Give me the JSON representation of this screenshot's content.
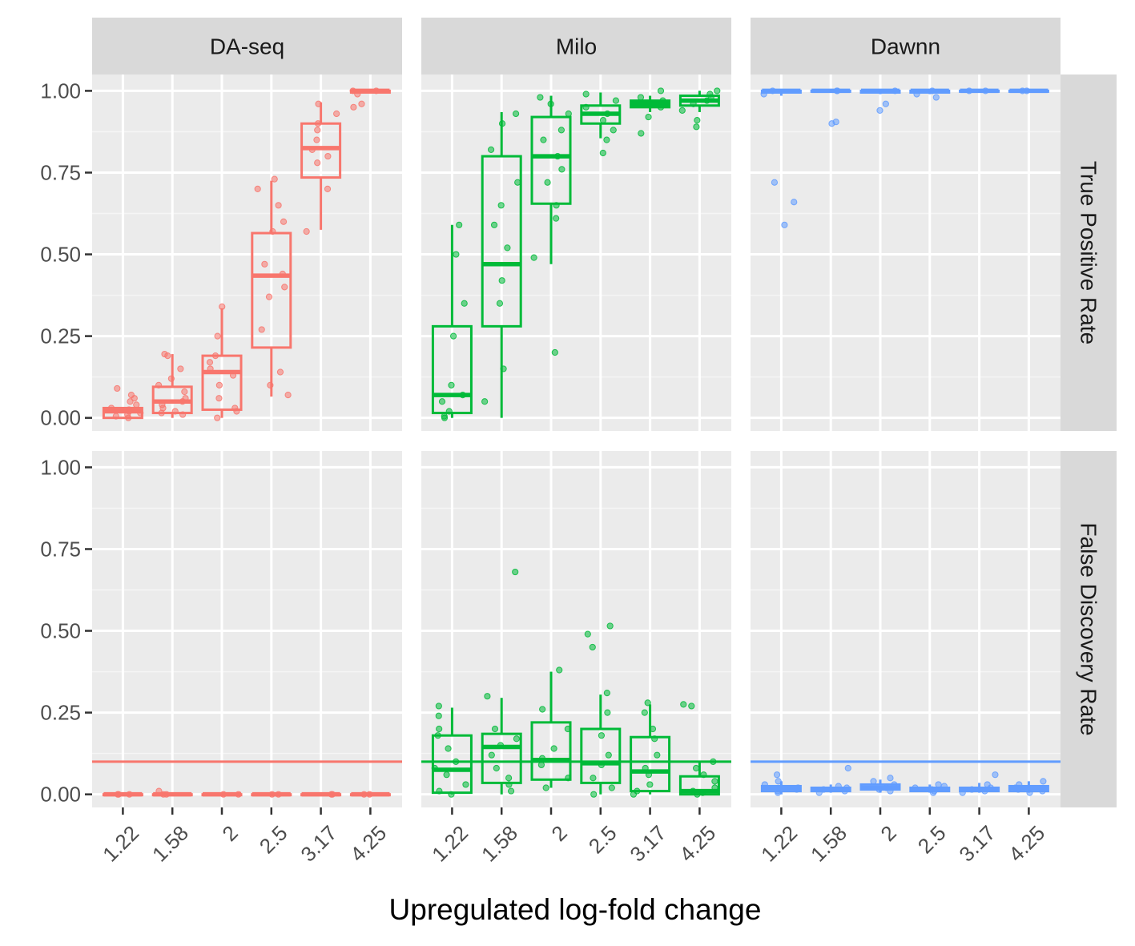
{
  "chart_data": {
    "type": "boxplot",
    "xlabel": "Upregulated log-fold change",
    "methods": [
      "DA-seq",
      "Milo",
      "Dawnn"
    ],
    "metrics": [
      "True Positive Rate",
      "False Discovery Rate"
    ],
    "categories": [
      "1.22",
      "1.58",
      "2",
      "2.5",
      "3.17",
      "4.25"
    ],
    "yticks": [
      "0.00",
      "0.25",
      "0.50",
      "0.75",
      "1.00"
    ],
    "ylim": [
      -0.04,
      1.05
    ],
    "fdr_reference_line": 0.1,
    "colors": {
      "DA-seq": "#F8766D",
      "Milo": "#00BA38",
      "Dawnn": "#619CFF"
    },
    "panels": [
      {
        "method": "DA-seq",
        "metric": "True Positive Rate",
        "boxes": [
          {
            "cat": "1.22",
            "q1": 0.0,
            "median": 0.02,
            "q3": 0.03,
            "whislo": 0.0,
            "whishi": 0.03,
            "points": [
              0.0,
              0.005,
              0.01,
              0.015,
              0.02,
              0.025,
              0.03,
              0.04,
              0.05,
              0.06,
              0.07,
              0.09
            ]
          },
          {
            "cat": "1.58",
            "q1": 0.015,
            "median": 0.05,
            "q3": 0.095,
            "whislo": 0.0,
            "whishi": 0.195,
            "points": [
              0.01,
              0.015,
              0.02,
              0.03,
              0.04,
              0.05,
              0.06,
              0.08,
              0.1,
              0.12,
              0.15,
              0.19,
              0.195
            ]
          },
          {
            "cat": "2",
            "q1": 0.025,
            "median": 0.14,
            "q3": 0.19,
            "whislo": 0.0,
            "whishi": 0.335,
            "points": [
              0.0,
              0.02,
              0.03,
              0.06,
              0.1,
              0.13,
              0.15,
              0.17,
              0.19,
              0.25,
              0.34
            ]
          },
          {
            "cat": "2.5",
            "q1": 0.215,
            "median": 0.435,
            "q3": 0.565,
            "whislo": 0.065,
            "whishi": 0.725,
            "points": [
              0.07,
              0.1,
              0.14,
              0.27,
              0.37,
              0.4,
              0.44,
              0.47,
              0.57,
              0.6,
              0.65,
              0.7,
              0.73
            ]
          },
          {
            "cat": "3.17",
            "q1": 0.735,
            "median": 0.825,
            "q3": 0.9,
            "whislo": 0.575,
            "whishi": 0.965,
            "points": [
              0.57,
              0.7,
              0.78,
              0.8,
              0.82,
              0.85,
              0.88,
              0.9,
              0.93,
              0.96
            ]
          },
          {
            "cat": "4.25",
            "q1": 0.995,
            "median": 1.0,
            "q3": 1.0,
            "whislo": 0.995,
            "whishi": 1.0,
            "points": [
              0.95,
              0.96,
              0.99,
              1.0,
              1.0
            ]
          }
        ]
      },
      {
        "method": "Milo",
        "metric": "True Positive Rate",
        "boxes": [
          {
            "cat": "1.22",
            "q1": 0.015,
            "median": 0.07,
            "q3": 0.28,
            "whislo": 0.0,
            "whishi": 0.59,
            "points": [
              0.0,
              0.005,
              0.02,
              0.05,
              0.07,
              0.1,
              0.25,
              0.35,
              0.5,
              0.59
            ]
          },
          {
            "cat": "1.58",
            "q1": 0.28,
            "median": 0.47,
            "q3": 0.8,
            "whislo": 0.0,
            "whishi": 0.935,
            "points": [
              0.05,
              0.15,
              0.35,
              0.42,
              0.52,
              0.59,
              0.65,
              0.72,
              0.82,
              0.9,
              0.93
            ]
          },
          {
            "cat": "2",
            "q1": 0.655,
            "median": 0.8,
            "q3": 0.92,
            "whislo": 0.47,
            "whishi": 0.985,
            "points": [
              0.2,
              0.49,
              0.61,
              0.65,
              0.72,
              0.76,
              0.8,
              0.85,
              0.88,
              0.93,
              0.96,
              0.98
            ]
          },
          {
            "cat": "2.5",
            "q1": 0.9,
            "median": 0.93,
            "q3": 0.955,
            "whislo": 0.855,
            "whishi": 0.995,
            "points": [
              0.81,
              0.85,
              0.88,
              0.91,
              0.93,
              0.95,
              0.97,
              0.99
            ]
          },
          {
            "cat": "3.17",
            "q1": 0.95,
            "median": 0.96,
            "q3": 0.97,
            "whislo": 0.935,
            "whishi": 0.985,
            "points": [
              0.87,
              0.92,
              0.95,
              0.96,
              0.97,
              0.98,
              1.0
            ]
          },
          {
            "cat": "4.25",
            "q1": 0.955,
            "median": 0.97,
            "q3": 0.985,
            "whislo": 0.935,
            "whishi": 1.0,
            "points": [
              0.89,
              0.91,
              0.94,
              0.96,
              0.97,
              0.98,
              0.99,
              1.0
            ]
          }
        ]
      },
      {
        "method": "Dawnn",
        "metric": "True Positive Rate",
        "boxes": [
          {
            "cat": "1.22",
            "q1": 0.995,
            "median": 1.0,
            "q3": 1.0,
            "whislo": 0.985,
            "whishi": 1.0,
            "points": [
              0.59,
              0.66,
              0.72,
              0.99,
              1.0
            ]
          },
          {
            "cat": "1.58",
            "q1": 1.0,
            "median": 1.0,
            "q3": 1.0,
            "whislo": 1.0,
            "whishi": 1.0,
            "points": [
              0.9,
              0.905,
              1.0,
              1.0
            ]
          },
          {
            "cat": "2",
            "q1": 0.995,
            "median": 1.0,
            "q3": 1.0,
            "whislo": 0.99,
            "whishi": 1.0,
            "points": [
              0.94,
              0.96,
              1.0
            ]
          },
          {
            "cat": "2.5",
            "q1": 0.995,
            "median": 1.0,
            "q3": 1.0,
            "whislo": 0.99,
            "whishi": 1.0,
            "points": [
              0.98,
              0.99,
              1.0
            ]
          },
          {
            "cat": "3.17",
            "q1": 1.0,
            "median": 1.0,
            "q3": 1.0,
            "whislo": 1.0,
            "whishi": 1.0,
            "points": [
              1.0,
              1.0
            ]
          },
          {
            "cat": "4.25",
            "q1": 1.0,
            "median": 1.0,
            "q3": 1.0,
            "whislo": 1.0,
            "whishi": 1.0,
            "points": [
              1.0,
              1.0
            ]
          }
        ]
      },
      {
        "method": "DA-seq",
        "metric": "False Discovery Rate",
        "boxes": [
          {
            "cat": "1.22",
            "q1": 0.0,
            "median": 0.0,
            "q3": 0.0,
            "whislo": 0.0,
            "whishi": 0.0,
            "points": [
              0.0,
              0.0,
              0.0
            ]
          },
          {
            "cat": "1.58",
            "q1": 0.0,
            "median": 0.0,
            "q3": 0.0,
            "whislo": 0.0,
            "whishi": 0.0,
            "points": [
              0.0,
              0.0,
              0.01
            ]
          },
          {
            "cat": "2",
            "q1": 0.0,
            "median": 0.0,
            "q3": 0.0,
            "whislo": 0.0,
            "whishi": 0.0,
            "points": [
              0.0,
              0.0
            ]
          },
          {
            "cat": "2.5",
            "q1": 0.0,
            "median": 0.0,
            "q3": 0.0,
            "whislo": 0.0,
            "whishi": 0.0,
            "points": [
              0.0,
              0.0
            ]
          },
          {
            "cat": "3.17",
            "q1": 0.0,
            "median": 0.0,
            "q3": 0.0,
            "whislo": 0.0,
            "whishi": 0.0,
            "points": [
              0.0,
              0.0
            ]
          },
          {
            "cat": "4.25",
            "q1": 0.0,
            "median": 0.0,
            "q3": 0.0,
            "whislo": 0.0,
            "whishi": 0.0,
            "points": [
              0.0,
              0.0
            ]
          }
        ]
      },
      {
        "method": "Milo",
        "metric": "False Discovery Rate",
        "boxes": [
          {
            "cat": "1.22",
            "q1": 0.005,
            "median": 0.075,
            "q3": 0.18,
            "whislo": 0.0,
            "whishi": 0.265,
            "points": [
              0.0,
              0.01,
              0.03,
              0.06,
              0.08,
              0.1,
              0.14,
              0.18,
              0.2,
              0.24,
              0.27
            ]
          },
          {
            "cat": "1.58",
            "q1": 0.035,
            "median": 0.145,
            "q3": 0.185,
            "whislo": 0.0,
            "whishi": 0.295,
            "points": [
              0.01,
              0.03,
              0.05,
              0.08,
              0.12,
              0.15,
              0.17,
              0.2,
              0.3,
              0.68
            ]
          },
          {
            "cat": "2",
            "q1": 0.045,
            "median": 0.105,
            "q3": 0.22,
            "whislo": 0.02,
            "whishi": 0.375,
            "points": [
              0.02,
              0.05,
              0.09,
              0.11,
              0.14,
              0.2,
              0.26,
              0.38
            ]
          },
          {
            "cat": "2.5",
            "q1": 0.035,
            "median": 0.095,
            "q3": 0.2,
            "whislo": 0.0,
            "whishi": 0.305,
            "points": [
              0.0,
              0.02,
              0.05,
              0.09,
              0.12,
              0.18,
              0.25,
              0.31,
              0.45,
              0.49,
              0.515
            ]
          },
          {
            "cat": "3.17",
            "q1": 0.01,
            "median": 0.07,
            "q3": 0.175,
            "whislo": 0.0,
            "whishi": 0.275,
            "points": [
              0.0,
              0.01,
              0.03,
              0.06,
              0.08,
              0.12,
              0.17,
              0.2,
              0.25,
              0.28
            ]
          },
          {
            "cat": "4.25",
            "q1": 0.0,
            "median": 0.01,
            "q3": 0.055,
            "whislo": 0.0,
            "whishi": 0.1,
            "points": [
              0.0,
              0.005,
              0.01,
              0.02,
              0.04,
              0.06,
              0.08,
              0.1,
              0.27,
              0.275
            ]
          }
        ]
      },
      {
        "method": "Dawnn",
        "metric": "False Discovery Rate",
        "boxes": [
          {
            "cat": "1.22",
            "q1": 0.01,
            "median": 0.02,
            "q3": 0.025,
            "whislo": 0.0,
            "whishi": 0.04,
            "points": [
              0.005,
              0.01,
              0.015,
              0.02,
              0.03,
              0.04,
              0.06
            ]
          },
          {
            "cat": "1.58",
            "q1": 0.01,
            "median": 0.015,
            "q3": 0.02,
            "whislo": 0.005,
            "whishi": 0.03,
            "points": [
              0.005,
              0.01,
              0.015,
              0.02,
              0.025,
              0.08
            ]
          },
          {
            "cat": "2",
            "q1": 0.015,
            "median": 0.02,
            "q3": 0.03,
            "whislo": 0.005,
            "whishi": 0.045,
            "points": [
              0.01,
              0.015,
              0.02,
              0.03,
              0.04,
              0.05
            ]
          },
          {
            "cat": "2.5",
            "q1": 0.01,
            "median": 0.015,
            "q3": 0.02,
            "whislo": 0.005,
            "whishi": 0.03,
            "points": [
              0.005,
              0.01,
              0.015,
              0.02,
              0.025,
              0.03
            ]
          },
          {
            "cat": "3.17",
            "q1": 0.01,
            "median": 0.015,
            "q3": 0.02,
            "whislo": 0.005,
            "whishi": 0.035,
            "points": [
              0.005,
              0.01,
              0.015,
              0.02,
              0.03,
              0.06
            ]
          },
          {
            "cat": "4.25",
            "q1": 0.01,
            "median": 0.02,
            "q3": 0.025,
            "whislo": 0.005,
            "whishi": 0.04,
            "points": [
              0.005,
              0.01,
              0.015,
              0.02,
              0.03,
              0.04
            ]
          }
        ]
      }
    ]
  }
}
